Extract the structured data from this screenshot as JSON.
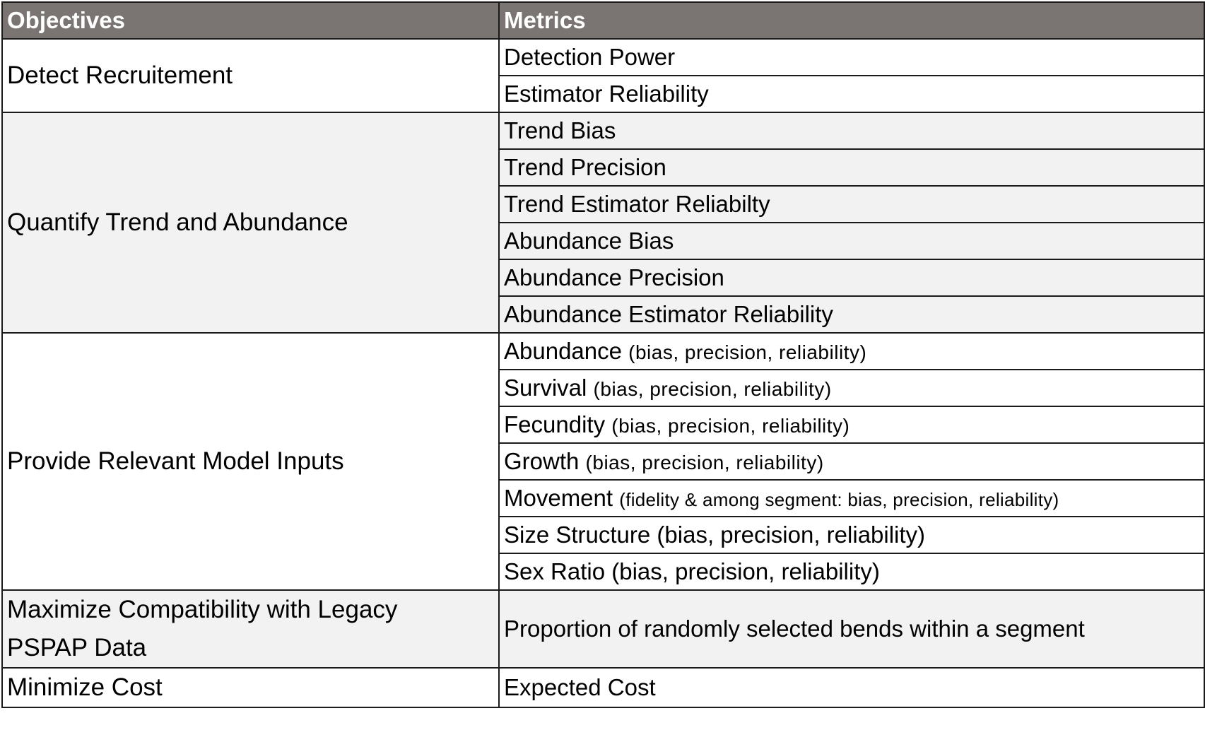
{
  "header": {
    "objectives": "Objectives",
    "metrics": "Metrics"
  },
  "groups": [
    {
      "objective": "Detect Recruitement",
      "metrics": [
        {
          "main": "Detection Power"
        },
        {
          "main": "Estimator Reliability"
        }
      ]
    },
    {
      "objective": "Quantify Trend and Abundance",
      "metrics": [
        {
          "main": "Trend Bias"
        },
        {
          "main": "Trend Precision"
        },
        {
          "main": "Trend Estimator Reliabilty"
        },
        {
          "main": "Abundance Bias"
        },
        {
          "main": "Abundance Precision"
        },
        {
          "main": "Abundance Estimator Reliability"
        }
      ]
    },
    {
      "objective": "Provide Relevant Model Inputs",
      "metrics": [
        {
          "main": "Abundance",
          "note": "(bias, precision, reliability)"
        },
        {
          "main": "Survival",
          "note": "(bias, precision, reliability)"
        },
        {
          "main": "Fecundity",
          "note": "(bias, precision, reliability)"
        },
        {
          "main": "Growth",
          "note": "(bias, precision, reliability)"
        },
        {
          "main": "Movement",
          "note": "(fidelity & among segment: bias, precision, reliability)"
        },
        {
          "main": "Size Structure (bias, precision, reliability)"
        },
        {
          "main": "Sex Ratio (bias, precision, reliability)"
        }
      ]
    },
    {
      "objective_line1": "Maximize Compatibility with Legacy",
      "objective_line2": "PSPAP Data",
      "metrics": [
        {
          "main": "Proportion of randomly selected bends within a segment"
        }
      ]
    },
    {
      "objective": "Minimize Cost",
      "metrics": [
        {
          "main": "Expected Cost"
        }
      ]
    }
  ]
}
